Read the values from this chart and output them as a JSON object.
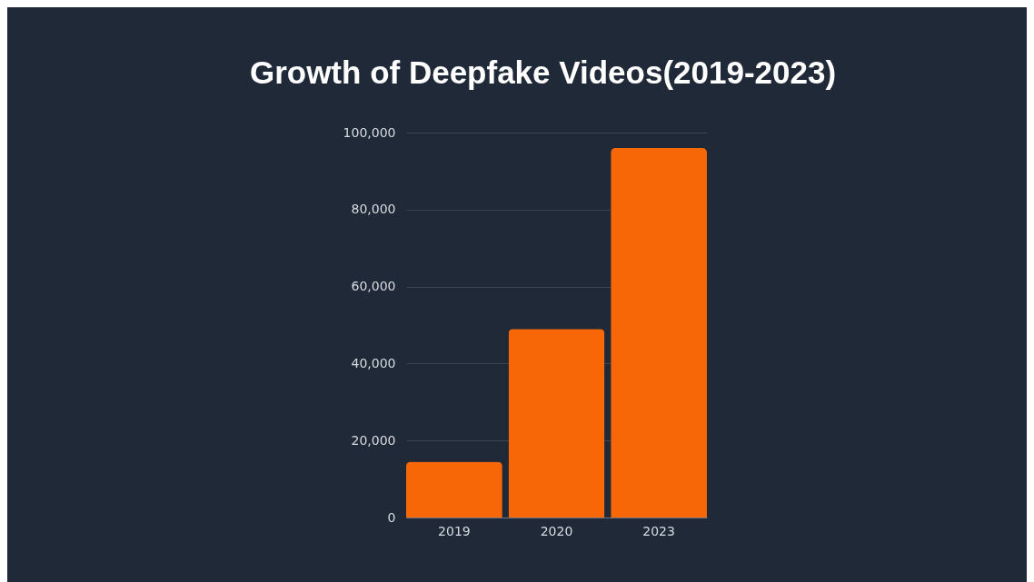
{
  "chart_data": {
    "type": "bar",
    "title": "Growth of Deepfake Videos(2019-2023)",
    "categories": [
      "2019",
      "2020",
      "2023"
    ],
    "values": [
      14500,
      49000,
      96000
    ],
    "color": "#f76707",
    "ylim": [
      0,
      100000
    ],
    "yticks": [
      0,
      {
        "value": 20000,
        "label": "20,000"
      },
      {
        "value": 40000,
        "label": "40,000"
      },
      {
        "value": 60000,
        "label": "60,000"
      },
      {
        "value": 80000,
        "label": "80,000"
      },
      {
        "value": 100000,
        "label": "100,000"
      }
    ],
    "grid": "y"
  }
}
